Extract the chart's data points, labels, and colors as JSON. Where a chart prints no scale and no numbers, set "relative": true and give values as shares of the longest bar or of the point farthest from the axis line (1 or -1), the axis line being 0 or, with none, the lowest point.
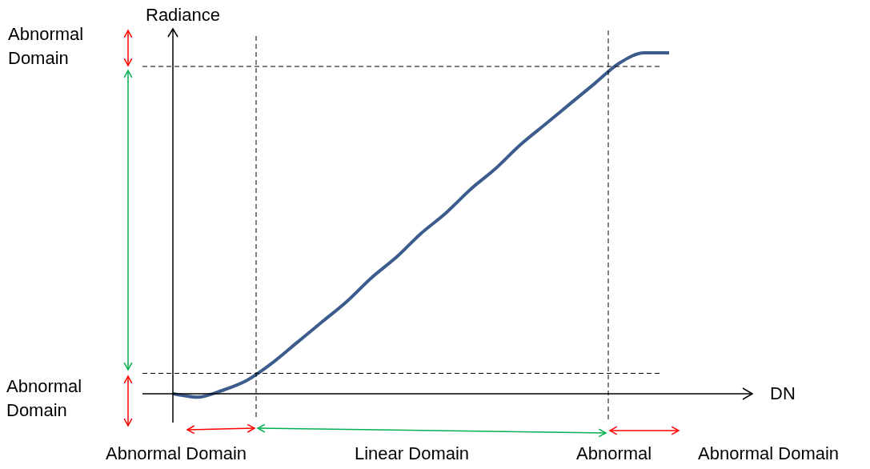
{
  "chart_data": {
    "type": "line",
    "relative": true,
    "ylabel": "Radiance",
    "categories": [
      null,
      null,
      null,
      null,
      null,
      null,
      null,
      null,
      null,
      null,
      null,
      null,
      null,
      null,
      null,
      null,
      null,
      null,
      null,
      null,
      null
    ],
    "values": [
      0.0,
      -0.01,
      0.01,
      0.04,
      0.09,
      0.15,
      0.21,
      0.27,
      0.34,
      0.4,
      0.47,
      0.53,
      0.6,
      0.66,
      0.73,
      0.79,
      0.85,
      0.91,
      0.97,
      1.0,
      1.0
    ],
    "color": "#3b5c8c",
    "marker": "none",
    "line_style": "solid",
    "legend": false,
    "ref_lines": [
      {
        "axis": "y",
        "value": 0.06,
        "color": "#000000",
        "line_style": "dashed"
      },
      {
        "axis": "y",
        "value": 0.96,
        "color": "#000000",
        "line_style": "dashed"
      }
    ],
    "annotations": [
      "Abnormal Domain",
      "Abnormal Domain",
      "Abnormal Domain",
      "Linear Domain",
      "Abnormal",
      "Abnormal Domain",
      "DN"
    ]
  }
}
